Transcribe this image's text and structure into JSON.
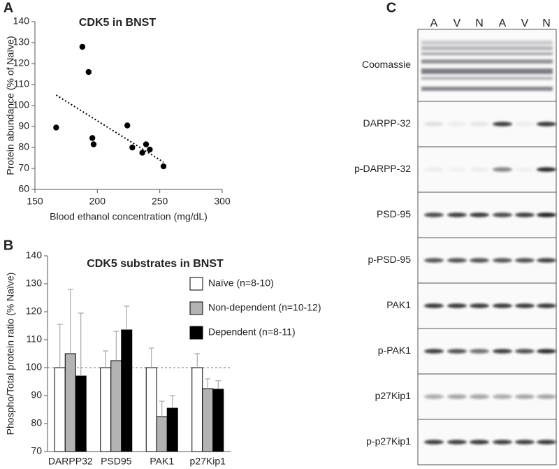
{
  "chart_data": [
    {
      "type": "scatter",
      "panel": "A",
      "title": "CDK5 in BNST",
      "xlabel": "Blood ethanol concentration (mg/dL)",
      "ylabel": "Protein abundance (% of Naïve)",
      "x": [
        167,
        188,
        193,
        196,
        197,
        224,
        228,
        236,
        239,
        242,
        253
      ],
      "y": [
        89.5,
        128,
        116,
        84.5,
        81.5,
        90.5,
        80,
        77.5,
        81.5,
        79,
        71
      ],
      "color": "#000000",
      "trend": {
        "x": [
          167,
          253
        ],
        "y": [
          105,
          73
        ]
      },
      "xlim": [
        150,
        300
      ],
      "xticks": [
        150,
        200,
        250,
        300
      ],
      "ylim": [
        60,
        140
      ],
      "yticks": [
        60,
        70,
        80,
        90,
        100,
        110,
        120,
        130,
        140
      ]
    },
    {
      "type": "bar",
      "panel": "B",
      "title": "CDK5 substrates in BNST",
      "ylabel": "Phospho/Total protein ratio (% Naïve)",
      "categories": [
        "DARPP32",
        "PSD95",
        "PAK1",
        "p27Kip1"
      ],
      "series": [
        {
          "name": "Naïve (n=8-10)",
          "color": "#ffffff",
          "values": [
            100,
            100,
            100,
            100
          ],
          "errors": [
            15.5,
            6,
            7,
            5
          ]
        },
        {
          "name": "Non-dependent (n=10-12)",
          "color": "#b3b3b3",
          "values": [
            105,
            102.5,
            82.5,
            92.5
          ],
          "errors": [
            23,
            10.5,
            5.5,
            3.5
          ]
        },
        {
          "name": "Dependent (n=8-11)",
          "color": "#000000",
          "values": [
            97,
            113.5,
            85.5,
            92.3
          ],
          "errors": [
            22.5,
            8.5,
            4.5,
            3
          ]
        }
      ],
      "reference_line": 100,
      "legend": "upper right",
      "ylim": [
        70,
        140
      ],
      "yticks": [
        70,
        80,
        90,
        100,
        110,
        120,
        130,
        140
      ]
    }
  ],
  "blot": {
    "panel": "C",
    "lanes": [
      "A",
      "V",
      "N",
      "A",
      "V",
      "N"
    ],
    "rows": [
      "Coomassie",
      "DARPP-32",
      "p-DARPP-32",
      "PSD-95",
      "p-PSD-95",
      "PAK1",
      "p-PAK1",
      "p27Kip1",
      "p-p27Kip1"
    ]
  }
}
